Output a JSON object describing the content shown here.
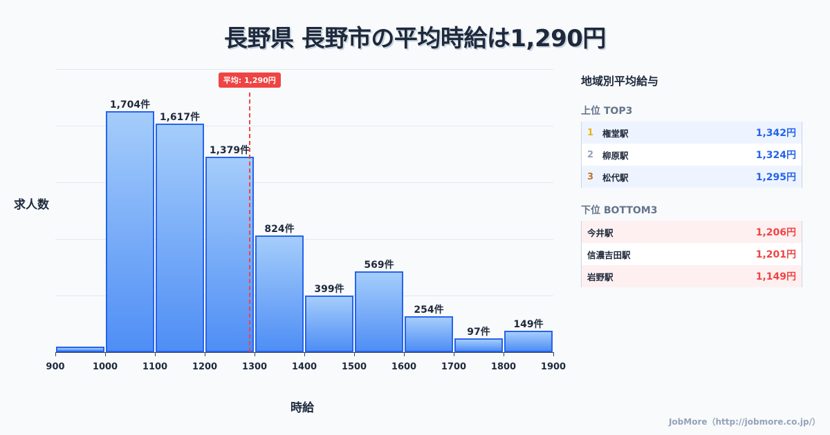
{
  "title": "長野県 長野市の平均時給は1,290円",
  "chart_data": {
    "type": "bar",
    "title": "長野県 長野市の平均時給は1,290円",
    "xlabel": "時給",
    "ylabel": "求人数",
    "categories": [
      "900-1000",
      "1000-1100",
      "1100-1200",
      "1200-1300",
      "1300-1400",
      "1400-1500",
      "1500-1600",
      "1600-1700",
      "1700-1800",
      "1800-1900"
    ],
    "bin_edges": [
      900,
      1000,
      1100,
      1200,
      1300,
      1400,
      1500,
      1600,
      1700,
      1800,
      1900
    ],
    "values": [
      40,
      1704,
      1617,
      1379,
      824,
      399,
      569,
      254,
      97,
      149
    ],
    "value_labels": [
      "",
      "1,704件",
      "1,617件",
      "1,379件",
      "824件",
      "399件",
      "569件",
      "254件",
      "97件",
      "149件"
    ],
    "x_ticks": [
      "900",
      "1000",
      "1100",
      "1200",
      "1300",
      "1400",
      "1500",
      "1600",
      "1700",
      "1800",
      "1900"
    ],
    "ylim": [
      0,
      2000
    ],
    "grid": true,
    "average": {
      "value": 1290,
      "label": "平均: 1,290円",
      "color": "#ef4444"
    },
    "bar_color": "#4f8ef5",
    "bar_border_color": "#2563eb"
  },
  "panel": {
    "title": "地域別平均給与",
    "top": {
      "heading": "上位 TOP3",
      "rows": [
        {
          "rank": "1",
          "name": "権堂駅",
          "value": "1,342円",
          "rank_color": "#eab308"
        },
        {
          "rank": "2",
          "name": "柳原駅",
          "value": "1,324円",
          "rank_color": "#94a3b8"
        },
        {
          "rank": "3",
          "name": "松代駅",
          "value": "1,295円",
          "rank_color": "#c2742c"
        }
      ]
    },
    "bottom": {
      "heading": "下位 BOTTOM3",
      "rows": [
        {
          "name": "今井駅",
          "value": "1,206円"
        },
        {
          "name": "信濃吉田駅",
          "value": "1,201円"
        },
        {
          "name": "岩野駅",
          "value": "1,149円"
        }
      ]
    }
  },
  "footer": "JobMore（http://jobmore.co.jp/）"
}
